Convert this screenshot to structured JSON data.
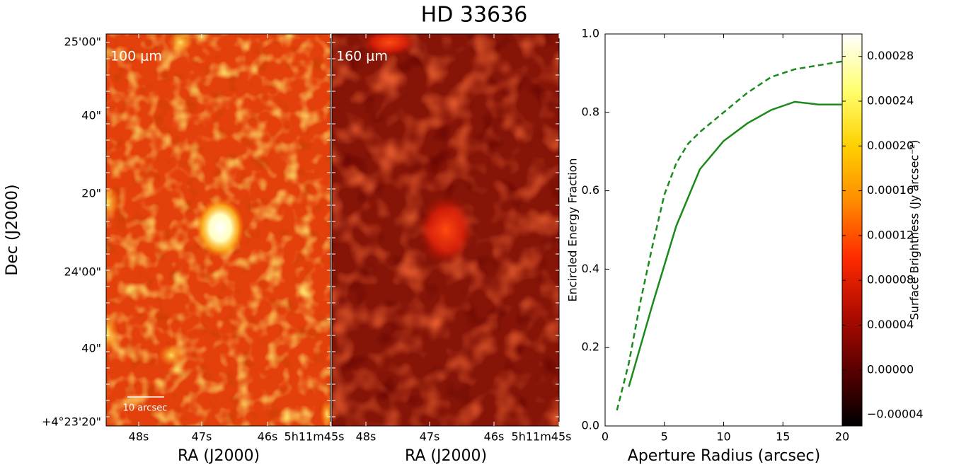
{
  "title": "HD 33636",
  "chart_data": [
    {
      "type": "image",
      "label": "100 μm",
      "xlabel": "RA (J2000)",
      "ylabel": "Dec (J2000)",
      "x_labels": [
        "48s",
        "47s",
        "46s",
        "5h11m45s"
      ],
      "y_labels": [
        "25'00\"",
        "40\"",
        "20\"",
        "24'00\"",
        "40\"",
        "+4°23'20\""
      ],
      "scale_bar": "10 arcsec"
    },
    {
      "type": "image",
      "label": "160 μm",
      "xlabel": "RA (J2000)",
      "x_labels": [
        "48s",
        "47s",
        "46s",
        "5h11m45s"
      ]
    },
    {
      "type": "line",
      "xlabel": "Aperture Radius (arcsec)",
      "ylabel": "Encircled Energy Fraction",
      "xlim": [
        0,
        20
      ],
      "ylim": [
        0,
        1
      ],
      "xticks": [
        0,
        5,
        10,
        15,
        20
      ],
      "yticks": [
        {
          "value": 0,
          "label": "0.0"
        },
        0.2,
        0.4,
        0.6,
        0.8,
        {
          "value": 1,
          "label": "1.0"
        }
      ],
      "series": [
        {
          "color": "#1a8a1a",
          "dashed": true,
          "x": [
            1,
            2,
            3,
            4,
            5,
            6,
            7,
            8,
            10,
            12,
            14,
            16,
            18,
            20
          ],
          "values": [
            0.04,
            0.16,
            0.32,
            0.46,
            0.59,
            0.67,
            0.72,
            0.75,
            0.8,
            0.85,
            0.89,
            0.91,
            0.92,
            0.93
          ]
        },
        {
          "color": "#1a8a1a",
          "dashed": false,
          "x": [
            2,
            4,
            6,
            8,
            10,
            12,
            14,
            16,
            18,
            20
          ],
          "values": [
            0.1,
            0.31,
            0.51,
            0.655,
            0.727,
            0.772,
            0.806,
            0.827,
            0.82,
            0.82
          ]
        }
      ]
    },
    {
      "type": "colorbar",
      "ylabel": "Surface Brightness (Jy arcsec⁻²)",
      "ylim": [
        -5e-05,
        0.0003
      ],
      "yticks": [
        {
          "value": -4e-05,
          "label": "−0.00004"
        },
        {
          "value": 0,
          "label": "0.00000"
        },
        4e-05,
        8e-05,
        0.00012,
        0.00016,
        {
          "value": 0.0002,
          "label": "0.00020"
        },
        0.00024,
        0.00028
      ],
      "colors": [
        "#000000",
        "#5a0000",
        "#b00c00",
        "#ff2a00",
        "#ff8a00",
        "#ffd000",
        "#ffff70",
        "#ffffff"
      ]
    }
  ]
}
